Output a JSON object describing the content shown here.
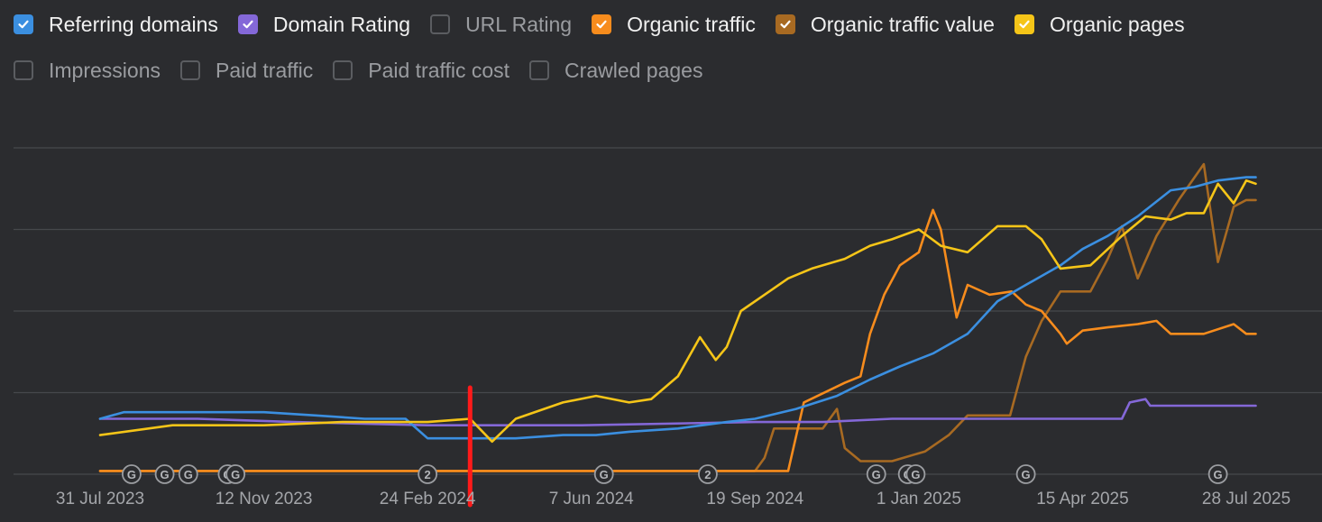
{
  "legend": {
    "row1": [
      {
        "label": "Referring domains",
        "checked": true,
        "color": "#3b8fe0"
      },
      {
        "label": "Domain Rating",
        "checked": true,
        "color": "#8468d8"
      },
      {
        "label": "URL Rating",
        "checked": false,
        "color": ""
      },
      {
        "label": "Organic traffic",
        "checked": true,
        "color": "#f78c1d"
      },
      {
        "label": "Organic traffic value",
        "checked": true,
        "color": "#a86a22"
      },
      {
        "label": "Organic pages",
        "checked": true,
        "color": "#f5c518"
      }
    ],
    "row2": [
      {
        "label": "Impressions",
        "checked": false,
        "color": ""
      },
      {
        "label": "Paid traffic",
        "checked": false,
        "color": ""
      },
      {
        "label": "Paid traffic cost",
        "checked": false,
        "color": ""
      },
      {
        "label": "Crawled pages",
        "checked": false,
        "color": ""
      }
    ]
  },
  "chart_data": {
    "type": "line",
    "title": "",
    "xlabel": "",
    "ylabel": "",
    "x_tick_labels": [
      "31 Jul 2023",
      "12 Nov 2023",
      "24 Feb 2024",
      "7 Jun 2024",
      "19 Sep 2024",
      "1 Jan 2025",
      "15 Apr 2025",
      "28 Jul 2025"
    ],
    "x_range": [
      "2023-07-31",
      "2025-08-05"
    ],
    "y_range": [
      0,
      100
    ],
    "y_axis_labels_shown": false,
    "grid": "horizontal",
    "gridline_values": [
      0,
      25,
      50,
      75,
      100
    ],
    "marker_line": {
      "date": "2024-03-22",
      "color": "#ff1a1a"
    },
    "event_markers": [
      {
        "date": "2023-08-20",
        "label": "G"
      },
      {
        "date": "2023-09-10",
        "label": "G"
      },
      {
        "date": "2023-09-25",
        "label": "G"
      },
      {
        "date": "2023-10-20",
        "label": "G"
      },
      {
        "date": "2023-10-25",
        "label": "G"
      },
      {
        "date": "2024-02-24",
        "label": "2"
      },
      {
        "date": "2024-06-15",
        "label": "G"
      },
      {
        "date": "2024-08-20",
        "label": "2"
      },
      {
        "date": "2024-12-05",
        "label": "G"
      },
      {
        "date": "2024-12-25",
        "label": "G"
      },
      {
        "date": "2024-12-30",
        "label": "G"
      },
      {
        "date": "2025-03-10",
        "label": "G"
      },
      {
        "date": "2025-07-10",
        "label": "G"
      }
    ],
    "series": [
      {
        "name": "Referring domains",
        "color": "#3b8fe0",
        "points": [
          [
            "2023-07-31",
            17
          ],
          [
            "2023-08-15",
            19
          ],
          [
            "2023-09-15",
            19
          ],
          [
            "2023-10-15",
            19
          ],
          [
            "2023-11-12",
            19
          ],
          [
            "2023-12-15",
            18
          ],
          [
            "2024-01-15",
            17
          ],
          [
            "2024-02-10",
            17
          ],
          [
            "2024-02-24",
            11
          ],
          [
            "2024-03-22",
            11
          ],
          [
            "2024-04-20",
            11
          ],
          [
            "2024-05-20",
            12
          ],
          [
            "2024-06-10",
            12
          ],
          [
            "2024-07-01",
            13
          ],
          [
            "2024-08-01",
            14
          ],
          [
            "2024-09-01",
            16
          ],
          [
            "2024-09-19",
            17
          ],
          [
            "2024-10-15",
            20
          ],
          [
            "2024-11-10",
            24
          ],
          [
            "2024-12-01",
            29
          ],
          [
            "2024-12-20",
            33
          ],
          [
            "2025-01-10",
            37
          ],
          [
            "2025-02-01",
            43
          ],
          [
            "2025-02-20",
            53
          ],
          [
            "2025-03-10",
            58
          ],
          [
            "2025-04-01",
            64
          ],
          [
            "2025-04-15",
            69
          ],
          [
            "2025-05-01",
            73
          ],
          [
            "2025-05-20",
            79
          ],
          [
            "2025-06-10",
            87
          ],
          [
            "2025-06-25",
            88
          ],
          [
            "2025-07-10",
            90
          ],
          [
            "2025-07-28",
            91
          ],
          [
            "2025-08-03",
            91
          ]
        ]
      },
      {
        "name": "Domain Rating",
        "color": "#8468d8",
        "points": [
          [
            "2023-07-31",
            17
          ],
          [
            "2023-10-01",
            17
          ],
          [
            "2023-12-01",
            16
          ],
          [
            "2024-02-24",
            15
          ],
          [
            "2024-06-01",
            15
          ],
          [
            "2024-09-19",
            16
          ],
          [
            "2024-11-01",
            16
          ],
          [
            "2024-12-15",
            17
          ],
          [
            "2025-01-15",
            17
          ],
          [
            "2025-04-01",
            17
          ],
          [
            "2025-05-10",
            17
          ],
          [
            "2025-05-15",
            22
          ],
          [
            "2025-05-25",
            23
          ],
          [
            "2025-05-28",
            21
          ],
          [
            "2025-07-28",
            21
          ],
          [
            "2025-08-03",
            21
          ]
        ]
      },
      {
        "name": "Organic traffic",
        "color": "#f78c1d",
        "points": [
          [
            "2023-07-31",
            1
          ],
          [
            "2024-02-24",
            1
          ],
          [
            "2024-06-01",
            1
          ],
          [
            "2024-09-19",
            1
          ],
          [
            "2024-10-10",
            1
          ],
          [
            "2024-10-20",
            22
          ],
          [
            "2024-11-15",
            28
          ],
          [
            "2024-11-25",
            30
          ],
          [
            "2024-12-01",
            43
          ],
          [
            "2024-12-10",
            55
          ],
          [
            "2024-12-20",
            64
          ],
          [
            "2025-01-01",
            68
          ],
          [
            "2025-01-05",
            74
          ],
          [
            "2025-01-10",
            81
          ],
          [
            "2025-01-15",
            75
          ],
          [
            "2025-01-25",
            48
          ],
          [
            "2025-02-01",
            58
          ],
          [
            "2025-02-15",
            55
          ],
          [
            "2025-03-01",
            56
          ],
          [
            "2025-03-10",
            52
          ],
          [
            "2025-03-20",
            50
          ],
          [
            "2025-04-01",
            43
          ],
          [
            "2025-04-05",
            40
          ],
          [
            "2025-04-15",
            44
          ],
          [
            "2025-05-01",
            45
          ],
          [
            "2025-05-20",
            46
          ],
          [
            "2025-06-01",
            47
          ],
          [
            "2025-06-10",
            43
          ],
          [
            "2025-07-01",
            43
          ],
          [
            "2025-07-20",
            46
          ],
          [
            "2025-07-28",
            43
          ],
          [
            "2025-08-03",
            43
          ]
        ]
      },
      {
        "name": "Organic traffic value",
        "color": "#a86a22",
        "points": [
          [
            "2023-07-31",
            1
          ],
          [
            "2024-02-24",
            1
          ],
          [
            "2024-06-01",
            1
          ],
          [
            "2024-09-19",
            1
          ],
          [
            "2024-09-25",
            5
          ],
          [
            "2024-10-01",
            14
          ],
          [
            "2024-10-15",
            14
          ],
          [
            "2024-11-01",
            14
          ],
          [
            "2024-11-10",
            20
          ],
          [
            "2024-11-15",
            8
          ],
          [
            "2024-11-25",
            4
          ],
          [
            "2024-12-15",
            4
          ],
          [
            "2025-01-05",
            7
          ],
          [
            "2025-01-20",
            12
          ],
          [
            "2025-02-01",
            18
          ],
          [
            "2025-02-15",
            18
          ],
          [
            "2025-02-28",
            18
          ],
          [
            "2025-03-10",
            36
          ],
          [
            "2025-03-20",
            47
          ],
          [
            "2025-04-01",
            56
          ],
          [
            "2025-04-20",
            56
          ],
          [
            "2025-05-01",
            66
          ],
          [
            "2025-05-10",
            76
          ],
          [
            "2025-05-20",
            60
          ],
          [
            "2025-06-01",
            73
          ],
          [
            "2025-06-15",
            84
          ],
          [
            "2025-07-01",
            95
          ],
          [
            "2025-07-10",
            65
          ],
          [
            "2025-07-20",
            82
          ],
          [
            "2025-07-28",
            84
          ],
          [
            "2025-08-03",
            84
          ]
        ]
      },
      {
        "name": "Organic pages",
        "color": "#f5c518",
        "points": [
          [
            "2023-07-31",
            12
          ],
          [
            "2023-09-15",
            15
          ],
          [
            "2023-11-12",
            15
          ],
          [
            "2024-01-01",
            16
          ],
          [
            "2024-02-24",
            16
          ],
          [
            "2024-03-22",
            17
          ],
          [
            "2024-04-05",
            10
          ],
          [
            "2024-04-20",
            17
          ],
          [
            "2024-05-20",
            22
          ],
          [
            "2024-06-10",
            24
          ],
          [
            "2024-07-01",
            22
          ],
          [
            "2024-07-15",
            23
          ],
          [
            "2024-08-01",
            30
          ],
          [
            "2024-08-15",
            42
          ],
          [
            "2024-08-25",
            35
          ],
          [
            "2024-09-01",
            39
          ],
          [
            "2024-09-10",
            50
          ],
          [
            "2024-09-25",
            55
          ],
          [
            "2024-10-10",
            60
          ],
          [
            "2024-10-25",
            63
          ],
          [
            "2024-11-15",
            66
          ],
          [
            "2024-12-01",
            70
          ],
          [
            "2024-12-15",
            72
          ],
          [
            "2025-01-01",
            75
          ],
          [
            "2025-01-15",
            70
          ],
          [
            "2025-02-01",
            68
          ],
          [
            "2025-02-20",
            76
          ],
          [
            "2025-03-10",
            76
          ],
          [
            "2025-03-20",
            72
          ],
          [
            "2025-04-01",
            63
          ],
          [
            "2025-04-20",
            64
          ],
          [
            "2025-05-10",
            73
          ],
          [
            "2025-05-25",
            79
          ],
          [
            "2025-06-10",
            78
          ],
          [
            "2025-06-20",
            80
          ],
          [
            "2025-07-01",
            80
          ],
          [
            "2025-07-10",
            89
          ],
          [
            "2025-07-20",
            83
          ],
          [
            "2025-07-28",
            90
          ],
          [
            "2025-08-03",
            89
          ]
        ]
      }
    ]
  }
}
